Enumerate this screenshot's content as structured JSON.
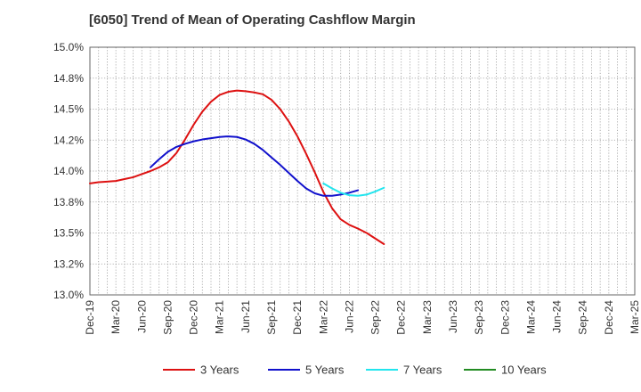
{
  "chart_data": {
    "type": "line",
    "title": "[6050]  Trend of Mean of Operating Cashflow Margin",
    "xlabel": "",
    "ylabel": "",
    "ylim": [
      13.0,
      15.0
    ],
    "y_ticks": [
      13.0,
      13.25,
      13.5,
      13.75,
      14.0,
      14.25,
      14.5,
      14.75,
      15.0
    ],
    "y_tick_labels": [
      "13.0%",
      "13.2%",
      "13.5%",
      "13.8%",
      "14.0%",
      "14.2%",
      "14.5%",
      "14.8%",
      "15.0%"
    ],
    "x_labels": [
      "Dec-19",
      "Mar-20",
      "Jun-20",
      "Sep-20",
      "Dec-20",
      "Mar-21",
      "Jun-21",
      "Sep-21",
      "Dec-21",
      "Mar-22",
      "Jun-22",
      "Sep-22",
      "Dec-22",
      "Mar-23",
      "Jun-23",
      "Sep-23",
      "Dec-23",
      "Mar-24",
      "Jun-24",
      "Sep-24",
      "Dec-24",
      "Mar-25"
    ],
    "grid": true,
    "legend_position": "bottom",
    "series": [
      {
        "name": "3 Years",
        "color": "#dd1111",
        "start_index": 0,
        "values": [
          13.9,
          13.91,
          13.915,
          13.92,
          13.935,
          13.95,
          13.975,
          14.0,
          14.03,
          14.07,
          14.145,
          14.255,
          14.375,
          14.48,
          14.56,
          14.615,
          14.64,
          14.65,
          14.645,
          14.635,
          14.62,
          14.575,
          14.5,
          14.4,
          14.28,
          14.14,
          13.99,
          13.83,
          13.7,
          13.61,
          13.565,
          13.535,
          13.5,
          13.455,
          13.41
        ]
      },
      {
        "name": "5 Years",
        "color": "#1111cc",
        "start_index": 7,
        "values": [
          14.03,
          14.095,
          14.155,
          14.195,
          14.22,
          14.24,
          14.255,
          14.265,
          14.275,
          14.28,
          14.275,
          14.255,
          14.22,
          14.17,
          14.11,
          14.05,
          13.985,
          13.92,
          13.86,
          13.82,
          13.8,
          13.8,
          13.81,
          13.825,
          13.845
        ]
      },
      {
        "name": "7 Years",
        "color": "#22e5ee",
        "start_index": 27,
        "values": [
          13.9,
          13.86,
          13.825,
          13.805,
          13.8,
          13.81,
          13.835,
          13.865
        ]
      },
      {
        "name": "10 Years",
        "color": "#228b22",
        "start_index": 0,
        "values": []
      }
    ]
  }
}
